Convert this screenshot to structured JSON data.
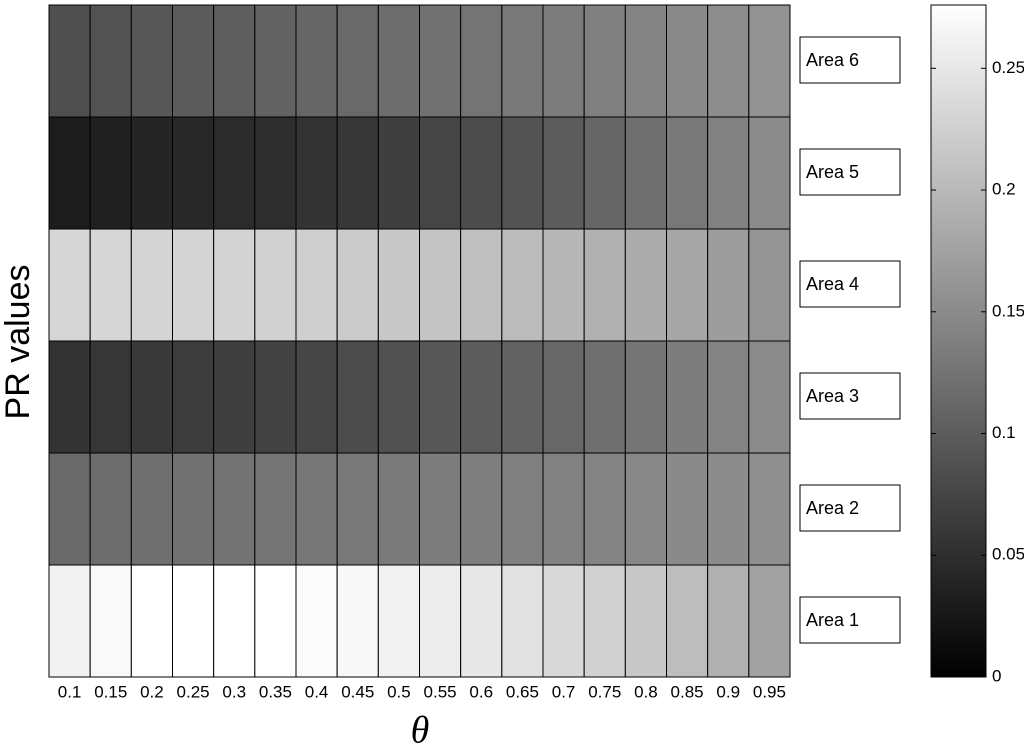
{
  "chart_data": {
    "type": "heatmap",
    "x_label": "θ",
    "y_label": "PR values",
    "categories": [
      "0.1",
      "0.15",
      "0.2",
      "0.25",
      "0.3",
      "0.35",
      "0.4",
      "0.45",
      "0.5",
      "0.55",
      "0.6",
      "0.65",
      "0.7",
      "0.75",
      "0.8",
      "0.85",
      "0.9",
      "0.95"
    ],
    "rows": [
      "Area 1",
      "Area 2",
      "Area 3",
      "Area 4",
      "Area 5",
      "Area 6"
    ],
    "values": [
      [
        0.262,
        0.27,
        0.276,
        0.276,
        0.276,
        0.276,
        0.272,
        0.268,
        0.262,
        0.256,
        0.25,
        0.243,
        0.235,
        0.226,
        0.216,
        0.205,
        0.192,
        0.175
      ],
      [
        0.115,
        0.118,
        0.12,
        0.122,
        0.124,
        0.126,
        0.128,
        0.13,
        0.132,
        0.134,
        0.136,
        0.138,
        0.14,
        0.143,
        0.146,
        0.149,
        0.152,
        0.155
      ],
      [
        0.055,
        0.058,
        0.062,
        0.065,
        0.068,
        0.072,
        0.076,
        0.082,
        0.088,
        0.094,
        0.1,
        0.106,
        0.112,
        0.12,
        0.127,
        0.135,
        0.142,
        0.15
      ],
      [
        0.232,
        0.232,
        0.23,
        0.23,
        0.228,
        0.226,
        0.224,
        0.22,
        0.216,
        0.212,
        0.208,
        0.203,
        0.198,
        0.192,
        0.186,
        0.18,
        0.17,
        0.16
      ],
      [
        0.03,
        0.035,
        0.04,
        0.043,
        0.046,
        0.05,
        0.055,
        0.06,
        0.068,
        0.075,
        0.082,
        0.09,
        0.1,
        0.11,
        0.12,
        0.13,
        0.14,
        0.15
      ],
      [
        0.085,
        0.09,
        0.094,
        0.098,
        0.102,
        0.106,
        0.11,
        0.114,
        0.118,
        0.122,
        0.126,
        0.13,
        0.134,
        0.138,
        0.143,
        0.148,
        0.153,
        0.158
      ]
    ],
    "colormap": "gray",
    "clim": [
      0,
      0.276
    ],
    "cticks": [
      0,
      0.05,
      0.1,
      0.15,
      0.2,
      0.25
    ]
  }
}
